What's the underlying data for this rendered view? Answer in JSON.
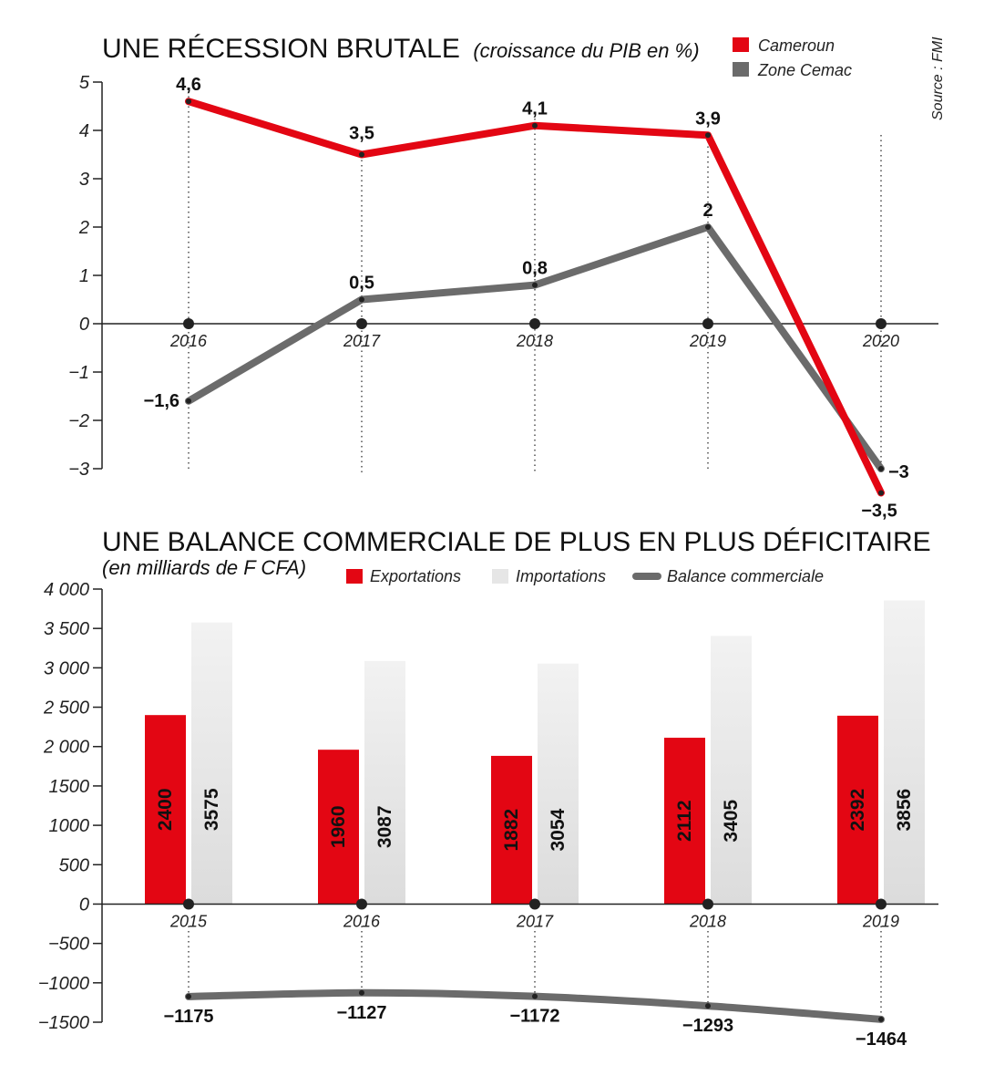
{
  "source": "Source : FMI",
  "chart1": {
    "title": "UNE RÉCESSION BRUTALE",
    "subtitle": "(croissance du PIB en %)",
    "legend": [
      {
        "label": "Cameroun",
        "color": "#e30613"
      },
      {
        "label": "Zone Cemac",
        "color": "#6b6b6b"
      }
    ]
  },
  "chart2": {
    "title": "UNE BALANCE COMMERCIALE DE PLUS EN PLUS DÉFICITAIRE",
    "subtitle": "(en milliards de F CFA)",
    "legend": [
      {
        "label": "Exportations",
        "color": "#e30613"
      },
      {
        "label": "Importations",
        "color": "#e6e6e6"
      },
      {
        "label": "Balance commerciale",
        "color": "#6b6b6b"
      }
    ]
  },
  "chart_data": [
    {
      "type": "line",
      "title": "UNE RÉCESSION BRUTALE",
      "subtitle": "(croissance du PIB en %)",
      "x": [
        "2016",
        "2017",
        "2018",
        "2019",
        "2020"
      ],
      "ylim": [
        -3,
        5
      ],
      "yticks": [
        "5",
        "4",
        "3",
        "2",
        "1",
        "0",
        "−1",
        "−2",
        "−3"
      ],
      "series": [
        {
          "name": "Cameroun",
          "color": "#e30613",
          "values": [
            4.6,
            3.5,
            4.1,
            3.9,
            -3.5
          ],
          "labels": [
            "4,6",
            "3,5",
            "4,1",
            "3,9",
            "−3,5"
          ]
        },
        {
          "name": "Zone Cemac",
          "color": "#6b6b6b",
          "values": [
            -1.6,
            0.5,
            0.8,
            2,
            -3
          ],
          "labels": [
            "−1,6",
            "0,5",
            "0,8",
            "2",
            "−3"
          ]
        }
      ],
      "legend_position": "top-right"
    },
    {
      "type": "bar",
      "title": "UNE BALANCE COMMERCIALE DE PLUS EN PLUS DÉFICITAIRE",
      "subtitle": "(en milliards de F CFA)",
      "categories": [
        "2015",
        "2016",
        "2017",
        "2018",
        "2019"
      ],
      "ylim": [
        -1500,
        4000
      ],
      "yticks": [
        "4 000",
        "3 500",
        "3 000",
        "2 500",
        "2 000",
        "1500",
        "1000",
        "500",
        "0",
        "−500",
        "−1000",
        "−1500"
      ],
      "series": [
        {
          "name": "Exportations",
          "color": "#e30613",
          "values": [
            2400,
            1960,
            1882,
            2112,
            2392
          ]
        },
        {
          "name": "Importations",
          "color": "#e6e6e6",
          "values": [
            3575,
            3087,
            3054,
            3405,
            3856
          ]
        },
        {
          "name": "Balance commerciale",
          "color": "#6b6b6b",
          "type": "line",
          "values": [
            -1175,
            -1127,
            -1172,
            -1293,
            -1464
          ],
          "labels": [
            "−1175",
            "−1127",
            "−1172",
            "−1293",
            "−1464"
          ]
        }
      ],
      "legend_position": "top"
    }
  ]
}
